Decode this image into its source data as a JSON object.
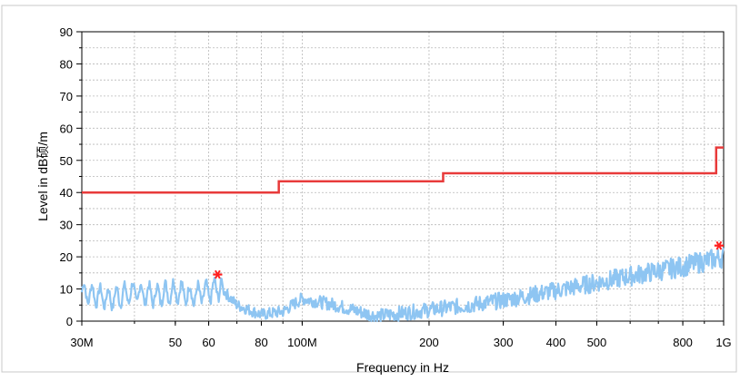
{
  "chart_data": {
    "type": "line",
    "title": "",
    "xlabel": "Frequency in Hz",
    "ylabel": "Level in dB硕/m",
    "x_scale": "log",
    "xlim": [
      30000000,
      1000000000
    ],
    "ylim": [
      0,
      90
    ],
    "grid": true,
    "y_ticks": [
      0,
      10,
      20,
      30,
      40,
      50,
      60,
      70,
      80,
      90
    ],
    "x_ticks": [
      {
        "value": 30000000,
        "label": "30M"
      },
      {
        "value": 50000000,
        "label": "50"
      },
      {
        "value": 60000000,
        "label": "60"
      },
      {
        "value": 80000000,
        "label": "80"
      },
      {
        "value": 100000000,
        "label": "100M"
      },
      {
        "value": 200000000,
        "label": "200"
      },
      {
        "value": 300000000,
        "label": "300"
      },
      {
        "value": 400000000,
        "label": "400"
      },
      {
        "value": 500000000,
        "label": "500"
      },
      {
        "value": 800000000,
        "label": "800"
      },
      {
        "value": 1000000000,
        "label": "1G"
      }
    ],
    "series": [
      {
        "kind": "limit",
        "color": "#e83a3a",
        "x": [
          30000000,
          88000000,
          88000000,
          216000000,
          216000000,
          960000000,
          960000000,
          1000000000
        ],
        "y": [
          40,
          40,
          43.5,
          43.5,
          46,
          46,
          54,
          54
        ]
      },
      {
        "kind": "measured",
        "color": "#8ec5f2",
        "x": [
          30000000,
          35000000,
          40000000,
          45000000,
          50000000,
          55000000,
          60000000,
          64000000,
          70000000,
          80000000,
          90000000,
          100000000,
          120000000,
          150000000,
          200000000,
          250000000,
          300000000,
          400000000,
          500000000,
          600000000,
          800000000,
          1000000000
        ],
        "y": [
          9,
          7,
          9,
          8,
          9.5,
          8,
          9,
          10.5,
          5,
          2,
          3,
          7,
          5,
          1.5,
          3.5,
          5,
          6.5,
          9.5,
          12,
          14,
          17,
          20
        ]
      }
    ],
    "markers": [
      {
        "x": 63000000,
        "y": 14.5,
        "color": "#ff2020",
        "symbol": "asterisk"
      },
      {
        "x": 975000000,
        "y": 23.5,
        "color": "#ff2020",
        "symbol": "asterisk"
      }
    ]
  }
}
